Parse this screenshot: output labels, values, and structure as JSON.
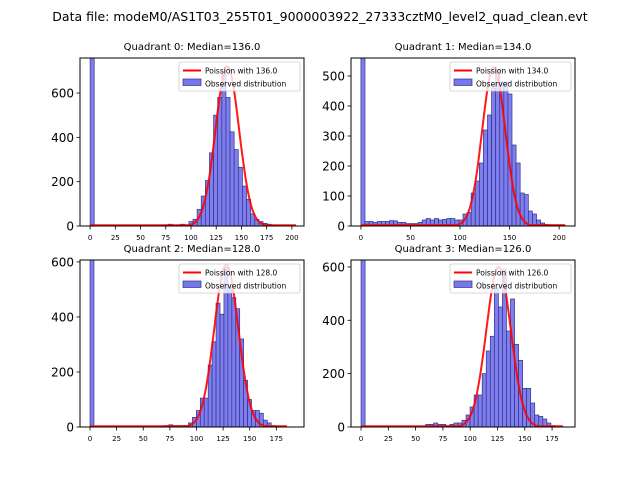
{
  "suptitle": "Data file: modeM0/AS1T03_255T01_9000003922_27333cztM0_level2_quad_clean.evt",
  "chart_data": [
    {
      "type": "bar",
      "title": "Quadrant 0: Median=136.0",
      "poisson_label": "Poission with 136.0",
      "observed_label": "Observed distribution",
      "mean": 136,
      "curve_peak": 720,
      "xlim": [
        -10,
        212
      ],
      "ylim": [
        0,
        758
      ],
      "xticks": [
        0,
        25,
        50,
        75,
        100,
        125,
        150,
        175,
        200
      ],
      "yticks": [
        0,
        200,
        400,
        600
      ],
      "bin_width": 4.08,
      "counts": [
        800,
        0,
        0,
        0,
        0,
        0,
        0,
        0,
        0,
        0,
        0,
        0,
        0,
        0,
        0,
        0,
        0,
        3,
        5,
        8,
        3,
        5,
        8,
        5,
        20,
        30,
        75,
        135,
        205,
        330,
        500,
        580,
        690,
        580,
        425,
        345,
        265,
        180,
        120,
        55,
        30,
        20,
        12,
        8,
        3,
        0,
        0,
        0,
        0,
        0
      ]
    },
    {
      "type": "bar",
      "title": "Quadrant 1: Median=134.0",
      "poisson_label": "Poission with 134.0",
      "observed_label": "Observed distribution",
      "mean": 134,
      "curve_peak": 530,
      "xlim": [
        -10,
        216
      ],
      "ylim": [
        0,
        560
      ],
      "xticks": [
        0,
        50,
        100,
        150,
        200
      ],
      "yticks": [
        0,
        100,
        200,
        300,
        400,
        500
      ],
      "bin_width": 4.12,
      "counts": [
        600,
        15,
        15,
        12,
        15,
        15,
        15,
        18,
        17,
        12,
        12,
        8,
        8,
        8,
        12,
        20,
        25,
        20,
        25,
        20,
        22,
        25,
        25,
        20,
        20,
        40,
        45,
        110,
        150,
        210,
        320,
        370,
        460,
        520,
        480,
        480,
        440,
        270,
        210,
        110,
        105,
        50,
        40,
        20,
        10,
        5,
        2,
        2,
        2,
        2
      ]
    },
    {
      "type": "bar",
      "title": "Quadrant 2: Median=128.0",
      "poisson_label": "Poission with 128.0",
      "observed_label": "Observed distribution",
      "mean": 128,
      "curve_peak": 590,
      "xlim": [
        -9.4,
        201
      ],
      "ylim": [
        0,
        607
      ],
      "xticks": [
        0,
        25,
        50,
        75,
        100,
        125,
        150,
        175
      ],
      "yticks": [
        0,
        200,
        400,
        600
      ],
      "bin_width": 3.7,
      "counts": [
        650,
        0,
        0,
        0,
        0,
        0,
        0,
        0,
        0,
        0,
        0,
        0,
        0,
        0,
        0,
        0,
        0,
        0,
        3,
        5,
        8,
        5,
        5,
        5,
        5,
        15,
        35,
        60,
        105,
        105,
        225,
        310,
        450,
        410,
        580,
        510,
        470,
        430,
        320,
        170,
        100,
        60,
        60,
        50,
        25,
        15,
        5,
        3,
        0,
        0
      ]
    },
    {
      "type": "bar",
      "title": "Quadrant 3: Median=126.0",
      "poisson_label": "Poission with 126.0",
      "observed_label": "Observed distribution",
      "mean": 126,
      "curve_peak": 600,
      "xlim": [
        -9.2,
        196
      ],
      "ylim": [
        0,
        626
      ],
      "xticks": [
        0,
        25,
        50,
        75,
        100,
        125,
        150,
        175
      ],
      "yticks": [
        0,
        200,
        400,
        600
      ],
      "bin_width": 3.7,
      "counts": [
        630,
        0,
        0,
        0,
        0,
        0,
        0,
        0,
        0,
        0,
        0,
        0,
        0,
        0,
        0,
        0,
        10,
        10,
        15,
        10,
        10,
        5,
        10,
        15,
        15,
        25,
        45,
        75,
        120,
        120,
        200,
        285,
        340,
        520,
        450,
        590,
        360,
        480,
        310,
        250,
        145,
        145,
        90,
        45,
        40,
        30,
        15,
        5,
        0,
        0
      ]
    }
  ],
  "colors": {
    "bar": "#7777ee",
    "bar_edge": "#333388",
    "curve": "#ff0000"
  }
}
